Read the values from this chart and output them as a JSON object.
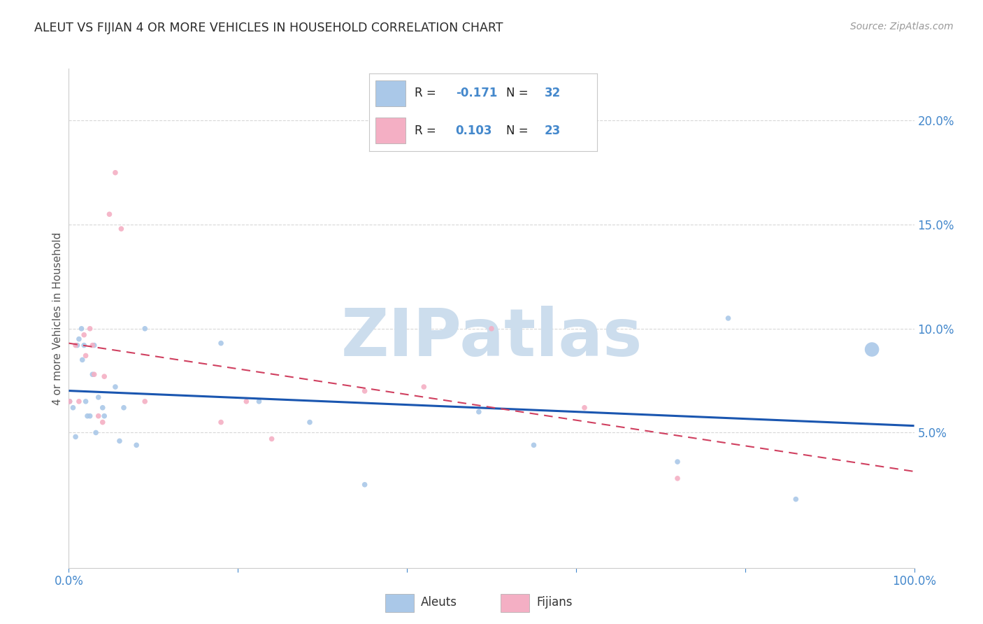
{
  "title": "ALEUT VS FIJIAN 4 OR MORE VEHICLES IN HOUSEHOLD CORRELATION CHART",
  "source": "Source: ZipAtlas.com",
  "ylabel": "4 or more Vehicles in Household",
  "xlim": [
    0.0,
    1.0
  ],
  "ylim": [
    -0.015,
    0.225
  ],
  "xtick_vals": [
    0.0,
    0.2,
    0.4,
    0.6,
    0.8,
    1.0
  ],
  "xticklabels": [
    "0.0%",
    "",
    "",
    "",
    "",
    "100.0%"
  ],
  "ytick_vals": [
    0.05,
    0.1,
    0.15,
    0.2
  ],
  "yticklabels": [
    "5.0%",
    "10.0%",
    "15.0%",
    "20.0%"
  ],
  "aleut_R": -0.171,
  "aleut_N": 32,
  "fijian_R": 0.103,
  "fijian_N": 23,
  "aleut_color": "#aac8e8",
  "aleut_line_color": "#1a56b0",
  "fijian_color": "#f4afc4",
  "fijian_line_color": "#d04060",
  "grid_color": "#d8d8d8",
  "tick_color": "#4488cc",
  "label_color": "#333333",
  "label_dark": "#222222",
  "watermark_text": "ZIPatlas",
  "watermark_color": "#ccdded",
  "aleut_x": [
    0.001,
    0.005,
    0.008,
    0.01,
    0.012,
    0.015,
    0.016,
    0.018,
    0.02,
    0.022,
    0.025,
    0.028,
    0.03,
    0.032,
    0.035,
    0.04,
    0.042,
    0.055,
    0.06,
    0.065,
    0.08,
    0.09,
    0.18,
    0.225,
    0.285,
    0.35,
    0.485,
    0.55,
    0.72,
    0.78,
    0.86,
    0.95
  ],
  "aleut_y": [
    0.065,
    0.062,
    0.048,
    0.092,
    0.095,
    0.1,
    0.085,
    0.092,
    0.065,
    0.058,
    0.058,
    0.078,
    0.092,
    0.05,
    0.067,
    0.062,
    0.058,
    0.072,
    0.046,
    0.062,
    0.044,
    0.1,
    0.093,
    0.065,
    0.055,
    0.025,
    0.06,
    0.044,
    0.036,
    0.105,
    0.018,
    0.09
  ],
  "aleut_size": [
    30,
    30,
    30,
    30,
    30,
    30,
    30,
    30,
    30,
    30,
    30,
    30,
    30,
    30,
    30,
    30,
    30,
    30,
    30,
    30,
    30,
    30,
    30,
    30,
    30,
    30,
    30,
    30,
    30,
    30,
    30,
    220
  ],
  "fijian_x": [
    0.001,
    0.008,
    0.012,
    0.018,
    0.02,
    0.025,
    0.028,
    0.03,
    0.035,
    0.04,
    0.042,
    0.048,
    0.055,
    0.062,
    0.09,
    0.18,
    0.21,
    0.24,
    0.35,
    0.42,
    0.5,
    0.61,
    0.72
  ],
  "fijian_y": [
    0.065,
    0.092,
    0.065,
    0.097,
    0.087,
    0.1,
    0.092,
    0.078,
    0.058,
    0.055,
    0.077,
    0.155,
    0.175,
    0.148,
    0.065,
    0.055,
    0.065,
    0.047,
    0.07,
    0.072,
    0.1,
    0.062,
    0.028
  ],
  "fijian_size": [
    30,
    30,
    30,
    30,
    30,
    30,
    30,
    30,
    30,
    30,
    30,
    30,
    30,
    30,
    30,
    30,
    30,
    30,
    30,
    30,
    30,
    30,
    30
  ]
}
